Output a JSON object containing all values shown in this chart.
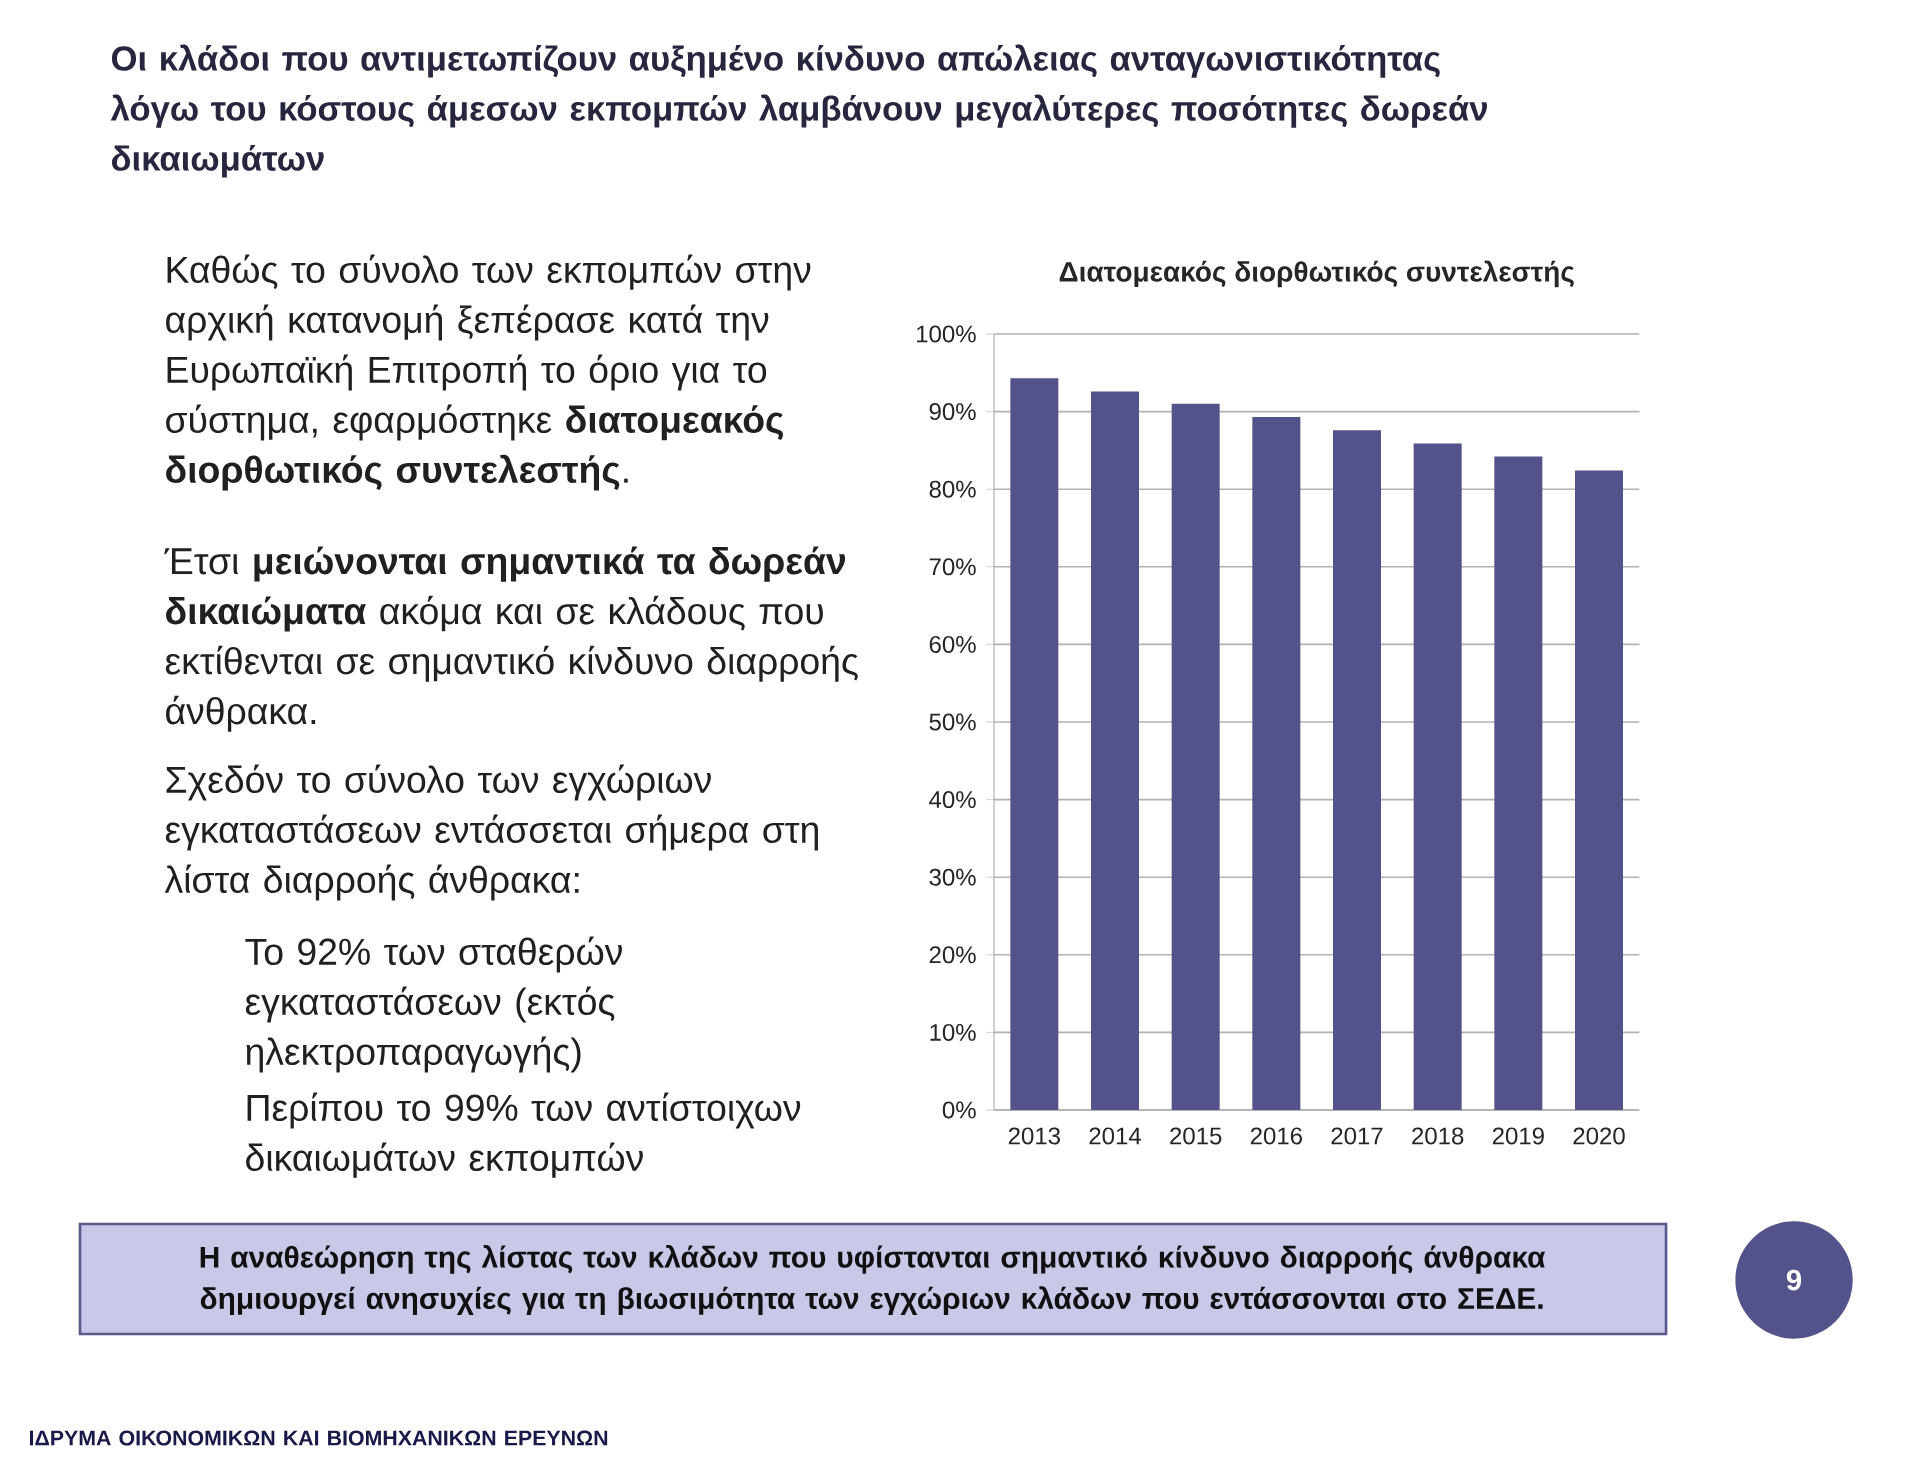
{
  "chart_data": {
    "type": "bar",
    "title": "Διατομεακός διορθωτικός συντελεστής",
    "categories": [
      "2013",
      "2014",
      "2015",
      "2016",
      "2017",
      "2018",
      "2019",
      "2020"
    ],
    "values": [
      94.3,
      92.6,
      91.0,
      89.3,
      87.6,
      85.9,
      84.2,
      82.4
    ],
    "color": "#53528a",
    "ylim": [
      0,
      100
    ],
    "yticks": [
      {
        "value": 0,
        "label": "0%"
      },
      {
        "value": 10,
        "label": "10%"
      },
      {
        "value": 20,
        "label": "20%"
      },
      {
        "value": 30,
        "label": "30%"
      },
      {
        "value": 40,
        "label": "40%"
      },
      {
        "value": 50,
        "label": "50%"
      },
      {
        "value": 60,
        "label": "60%"
      },
      {
        "value": 70,
        "label": "70%"
      },
      {
        "value": 80,
        "label": "80%"
      },
      {
        "value": 90,
        "label": "90%"
      },
      {
        "value": 100,
        "label": "100%"
      }
    ],
    "grid": "y",
    "annotations": [
      "Οι κλάδοι που αντιμετωπίζουν αυξημένο κίνδυνο απώλειας ανταγωνιστικότητας λόγω του κόστους άμεσων εκπομπών λαμβάνουν μεγαλύτερες ποσότητες δωρεάν δικαιωμάτων",
      "Καθώς το σύνολο των εκπομπών στην αρχική κατανομή ξεπέρασε κατά την Ευρωπαϊκή Επιτροπή το όριο για το σύστημα, εφαρμόστηκε **διατομεακός διορθωτικός συντελεστής**.",
      "Έτσι **μειώνονται σημαντικά τα δωρεάν δικαιώματα** ακόμα και σε κλάδους που εκτίθενται σε σημαντικό κίνδυνο διαρροής άνθρακα.",
      "Σχεδόν το σύνολο των εγχώριων εγκαταστάσεων εντάσσεται σήμερα στη λίστα διαρροής άνθρακα:",
      "Το 92% των σταθερών εγκαταστάσεων (εκτός ηλεκτροπαραγωγής)",
      "Περίπου το 99% των αντίστοιχων δικαιωμάτων εκπομπών",
      "Η αναθεώρηση της λίστας των κλάδων που υφίστανται σημαντικό κίνδυνο διαρροής άνθρακα δημιουργεί ανησυχίες για τη βιωσιμότητα των εγχώριων κλάδων που εντάσσονται στο ΣΕΔΕ.",
      "9",
      "ΙΔΡΥΜΑ ΟΙΚΟΝΟΜΙΚΩΝ ΚΑΙ ΒΙΟΜΗΧΑΝΙΚΩΝ ΕΡΕΥΝΩΝ"
    ]
  }
}
